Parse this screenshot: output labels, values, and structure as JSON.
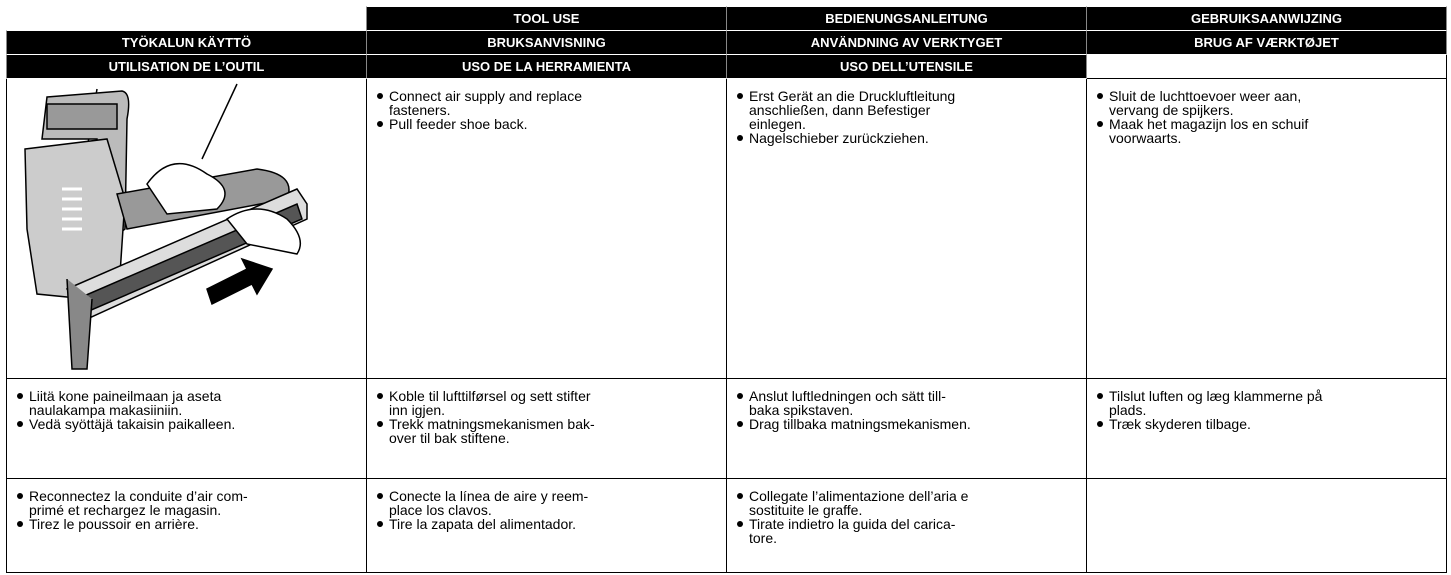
{
  "header_rows": [
    {
      "cells": [
        "TOOL USE",
        "BEDIENUNGSANLEITUNG",
        "GEBRUIKSAANWIJZING"
      ]
    },
    {
      "cells": [
        "TYÖKALUN KÄYTTÖ",
        "BRUKSANVISNING",
        "ANVÄNDNING AV VERKTYGET",
        "BRUG AF VÆRKTØJET"
      ]
    },
    {
      "cells": [
        "UTILISATION DE L’OUTIL",
        "USO DE LA HERRAMIENTA",
        "USO DELL’UTENSILE"
      ]
    }
  ],
  "body_rows": [
    {
      "cells": [
        {
          "bullets": [
            "Connect air supply and replace\nfasteners.",
            "Pull feeder shoe back."
          ]
        },
        {
          "bullets": [
            "Erst Gerät an die Druckluftleitung\nanschließen, dann Befestiger\neinlegen.",
            "Nagelschieber zurückziehen."
          ]
        },
        {
          "bullets": [
            "Sluit de luchttoevoer weer aan,\nvervang de spijkers.",
            "Maak het magazijn los en schuif\nvoorwaarts."
          ]
        }
      ]
    },
    {
      "cells": [
        {
          "bullets": [
            "Liitä kone paineilmaan ja aseta\nnaulakampa makasiiniin.",
            "Vedä syöttäjä takaisin paikalleen."
          ]
        },
        {
          "bullets": [
            "Koble til lufttilførsel og sett stifter\ninn igjen.",
            "Trekk matningsmekanismen bak-\nover til bak stiftene."
          ]
        },
        {
          "bullets": [
            "Anslut luftledningen och sätt till-\nbaka spikstaven.",
            "Drag tillbaka matningsmekanismen."
          ]
        },
        {
          "bullets": [
            "Tilslut luften og læg klammerne på\nplads.",
            "Træk skyderen tilbage."
          ]
        }
      ]
    },
    {
      "cells": [
        {
          "bullets": [
            "Reconnectez la conduite d’air com-\nprimé et rechargez le magasin.",
            "Tirez le poussoir en arrière."
          ]
        },
        {
          "bullets": [
            "Conecte la línea de aire y reem-\nplace los clavos.",
            "Tire la zapata del alimentador."
          ]
        },
        {
          "bullets": [
            "Collegate l’alimentazione dell’aria e\nsostituite le graffe.",
            "Tirate indietro la guida del carica-\ntore."
          ]
        }
      ]
    }
  ]
}
